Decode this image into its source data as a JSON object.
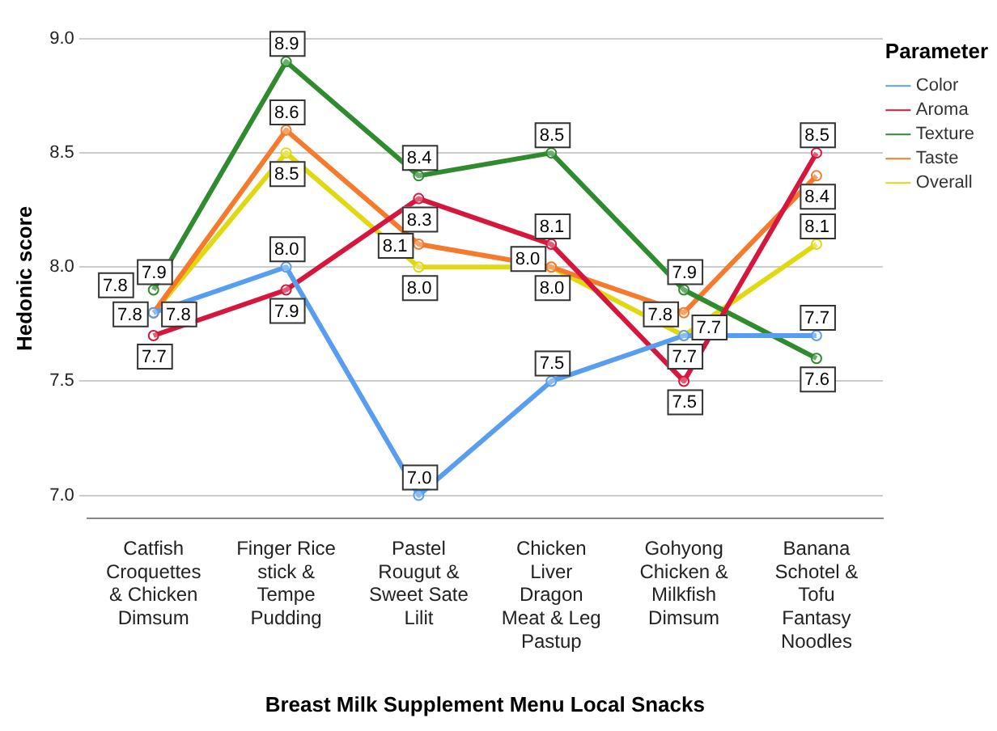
{
  "chart_data": {
    "type": "line",
    "xlabel": "Breast Milk Supplement Menu Local Snacks",
    "ylabel": "Hedonic score",
    "legend_title": "Parameter",
    "categories": [
      "Catfish Croquettes & Chicken Dimsum",
      "Finger Rice stick & Tempe Pudding",
      "Pastel Rougut & Sweet Sate Lilit",
      "Chicken Liver Dragon Meat & Leg Pastup",
      "Gohyong Chicken & Milkfish Dimsum",
      "Banana Schotel & Tofu Fantasy Noodles"
    ],
    "series": [
      {
        "name": "Color",
        "color": "#589ef0",
        "values": [
          7.8,
          8.0,
          7.0,
          7.5,
          7.7,
          7.7
        ],
        "value_labels": [
          "7.8",
          "8.0",
          "7.0",
          "7.5",
          "7.7",
          "7.7"
        ]
      },
      {
        "name": "Aroma",
        "color": "#d6163c",
        "values": [
          7.7,
          7.9,
          8.3,
          8.1,
          7.5,
          8.5
        ],
        "value_labels": [
          "7.7",
          "7.9",
          "8.3",
          "8.1",
          "7.5",
          "8.5"
        ]
      },
      {
        "name": "Texture",
        "color": "#2e8b2e",
        "values": [
          7.9,
          8.9,
          8.4,
          8.5,
          7.9,
          7.6
        ],
        "value_labels": [
          "7.9",
          "8.9",
          "8.4",
          "8.5",
          "7.9",
          "7.6"
        ]
      },
      {
        "name": "Taste",
        "color": "#f57a2c",
        "values": [
          7.8,
          8.6,
          8.1,
          8.0,
          7.8,
          8.4
        ],
        "value_labels": [
          "7.8",
          "8.6",
          "8.1",
          "8.0",
          "7.8",
          "8.4"
        ]
      },
      {
        "name": "Overall",
        "color": "#e0d810",
        "values": [
          7.8,
          8.5,
          8.0,
          8.0,
          7.7,
          8.1
        ],
        "value_labels": [
          "7.8",
          "8.5",
          "8.0",
          "8.0",
          "7.7",
          "8.1"
        ]
      }
    ],
    "ylim": [
      6.9,
      9.0
    ],
    "yticks": [
      {
        "value": 7,
        "label": "7.0"
      },
      {
        "value": 7.5,
        "label": "7.5"
      },
      {
        "value": 8,
        "label": "8.0"
      },
      {
        "value": 8.5,
        "label": "8.5"
      },
      {
        "value": 9,
        "label": "9.0"
      }
    ],
    "grid": "y",
    "legend": "top right",
    "marker": "circle",
    "line_style": "solid"
  }
}
